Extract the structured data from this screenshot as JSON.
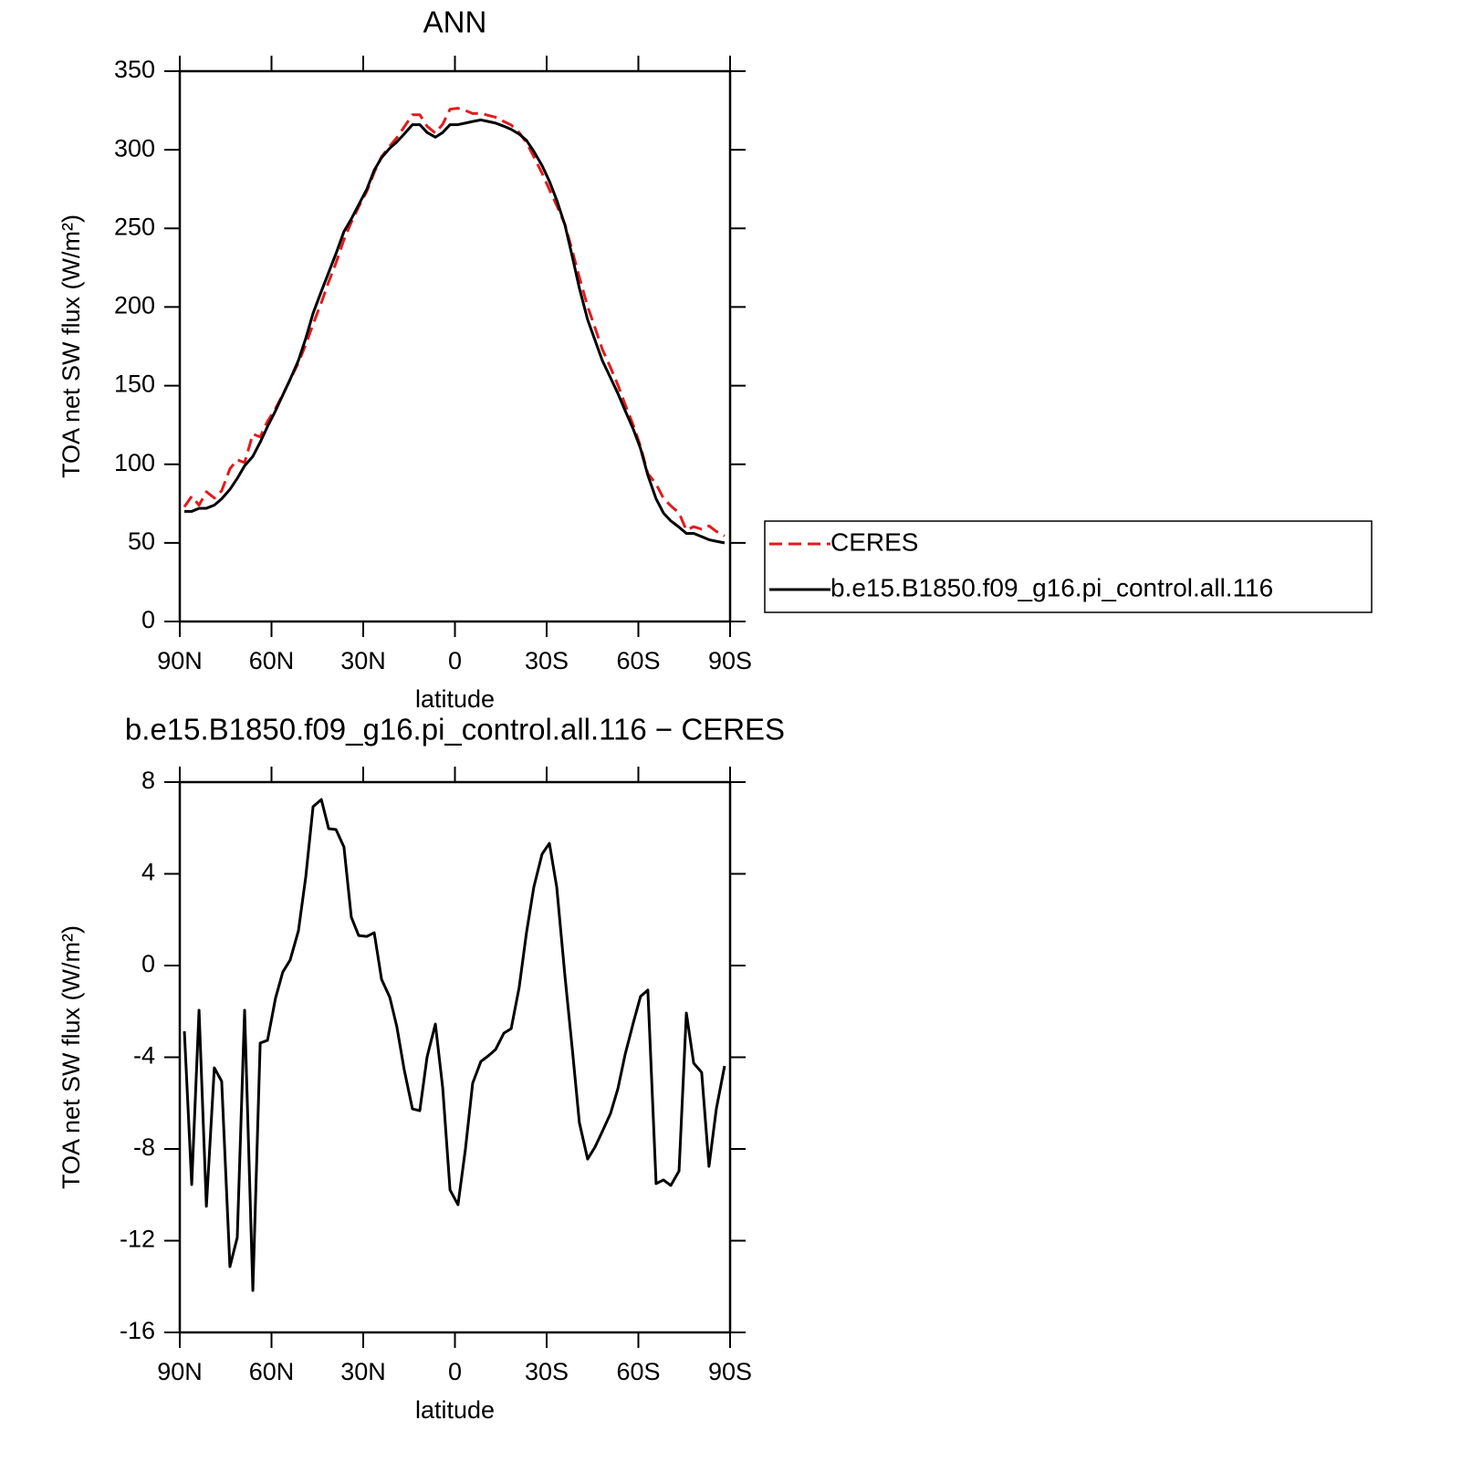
{
  "chart_data": [
    {
      "type": "line",
      "title": "ANN",
      "x_label": "latitude",
      "y_label": "TOA net SW flux (W/m²)",
      "x": [
        88.5,
        86.1,
        83.7,
        81.3,
        78.7,
        76.3,
        73.6,
        71.2,
        68.8,
        66.1,
        63.7,
        61.3,
        58.7,
        56.3,
        53.9,
        51.2,
        48.8,
        46.4,
        43.7,
        41.3,
        38.9,
        36.3,
        33.9,
        31.5,
        28.8,
        26.4,
        24.0,
        21.3,
        19.0,
        16.6,
        13.9,
        11.5,
        9.1,
        6.4,
        4.0,
        1.6,
        -1.0,
        -3.4,
        -5.8,
        -8.5,
        -10.9,
        -13.3,
        -16.0,
        -18.4,
        -21.0,
        -23.4,
        -25.8,
        -28.5,
        -30.9,
        -33.3,
        -36.0,
        -38.4,
        -40.7,
        -43.4,
        -45.8,
        -48.2,
        -50.9,
        -53.3,
        -55.7,
        -58.4,
        -60.7,
        -63.1,
        -65.8,
        -68.2,
        -70.6,
        -73.3,
        -75.7,
        -78.1,
        -80.7,
        -83.1,
        -85.5,
        -88.2
      ],
      "series": [
        {
          "name": "CERES",
          "color": "#e41a1c",
          "line_style": "dashed",
          "values": [
            72.9,
            79.6,
            74.0,
            82.5,
            78.5,
            83.1,
            97.1,
            102.9,
            101.0,
            119.2,
            117.4,
            127.3,
            135.4,
            144.3,
            153.8,
            164.5,
            176.1,
            189.1,
            202.8,
            216.0,
            228.1,
            242.8,
            253.9,
            263.7,
            273.7,
            285.6,
            295.6,
            302.4,
            307.7,
            314.5,
            322.3,
            322.3,
            315.0,
            310.6,
            316.3,
            325.8,
            326.4,
            325.0,
            323.1,
            323.2,
            321.9,
            320.7,
            318.0,
            315.8,
            311.0,
            304.6,
            295.6,
            285.1,
            274.7,
            264.6,
            252.5,
            235.7,
            218.9,
            200.4,
            186.9,
            173.2,
            161.5,
            150.4,
            137.9,
            124.5,
            111.4,
            94.1,
            87.5,
            78.4,
            73.6,
            69.0,
            58.1,
            60.3,
            58.7,
            60.8,
            57.3,
            54.4
          ]
        },
        {
          "name": "b.e15.B1850.f09_g16.pi_control.all.116",
          "color": "#000000",
          "line_style": "solid",
          "values": [
            70,
            70,
            72,
            72,
            74,
            78,
            84,
            91,
            99,
            105,
            114,
            124,
            134,
            144,
            154,
            166,
            180,
            196,
            210,
            222,
            234,
            248,
            256,
            265,
            275,
            287,
            295,
            301,
            305,
            310,
            316,
            316,
            311,
            308,
            311,
            316,
            316,
            317,
            318,
            319,
            318,
            317,
            315,
            313,
            310,
            306,
            299,
            290,
            280,
            268,
            252,
            232,
            212,
            192,
            179,
            166,
            155,
            145,
            134,
            122,
            110,
            93,
            78,
            69,
            64,
            60,
            56,
            56,
            54,
            52,
            51,
            50
          ]
        }
      ],
      "xlim": [
        90,
        -90
      ],
      "xticks": [
        {
          "value": 90,
          "label": "90N"
        },
        {
          "value": 60,
          "label": "60N"
        },
        {
          "value": 30,
          "label": "30N"
        },
        0,
        {
          "value": -30,
          "label": "30S"
        },
        {
          "value": -60,
          "label": "60S"
        },
        {
          "value": -90,
          "label": "90S"
        }
      ],
      "ylim": [
        0,
        350
      ],
      "yticks": [
        0,
        50,
        100,
        150,
        200,
        250,
        300,
        350
      ],
      "legend": "right"
    },
    {
      "type": "line",
      "title": "b.e15.B1850.f09_g16.pi_control.all.116 − CERES",
      "x_label": "latitude",
      "y_label": "TOA net SW flux (W/m²)",
      "x": [
        88.5,
        86.1,
        83.7,
        81.3,
        78.7,
        76.3,
        73.6,
        71.2,
        68.8,
        66.1,
        63.7,
        61.3,
        58.7,
        56.3,
        53.9,
        51.2,
        48.8,
        46.4,
        43.7,
        41.3,
        38.9,
        36.3,
        33.9,
        31.5,
        28.8,
        26.4,
        24.0,
        21.3,
        19.0,
        16.6,
        13.9,
        11.5,
        9.1,
        6.4,
        4.0,
        1.6,
        -1.0,
        -3.4,
        -5.8,
        -8.5,
        -10.9,
        -13.3,
        -16.0,
        -18.4,
        -21.0,
        -23.4,
        -25.8,
        -28.5,
        -30.9,
        -33.3,
        -36.0,
        -38.4,
        -40.7,
        -43.4,
        -45.8,
        -48.2,
        -50.9,
        -53.3,
        -55.7,
        -58.4,
        -60.7,
        -63.1,
        -65.8,
        -68.2,
        -70.6,
        -73.3,
        -75.7,
        -78.1,
        -80.7,
        -83.1,
        -85.5,
        -88.2
      ],
      "color": "#000000",
      "values": [
        -2.87,
        -9.55,
        -1.95,
        -10.5,
        -4.46,
        -5.05,
        -13.13,
        -11.86,
        -1.95,
        -14.17,
        -3.38,
        -3.26,
        -1.43,
        -0.28,
        0.24,
        1.51,
        3.86,
        6.93,
        7.24,
        5.97,
        5.93,
        5.17,
        2.11,
        1.31,
        1.27,
        1.43,
        -0.6,
        -1.39,
        -2.67,
        -4.54,
        -6.25,
        -6.33,
        -3.98,
        -2.55,
        -5.33,
        -9.79,
        -10.43,
        -8.04,
        -5.13,
        -4.18,
        -3.94,
        -3.66,
        -2.95,
        -2.75,
        -0.96,
        1.43,
        3.42,
        4.86,
        5.33,
        3.42,
        -0.48,
        -3.66,
        -6.85,
        -8.44,
        -7.92,
        -7.24,
        -6.45,
        -5.37,
        -3.86,
        -2.47,
        -1.35,
        -1.07,
        -9.51,
        -9.35,
        -9.59,
        -8.96,
        -2.07,
        -4.26,
        -4.66,
        -8.76,
        -6.25,
        -4.38
      ],
      "xlim": [
        90,
        -90
      ],
      "xticks": [
        {
          "value": 90,
          "label": "90N"
        },
        {
          "value": 60,
          "label": "60N"
        },
        {
          "value": 30,
          "label": "30N"
        },
        0,
        {
          "value": -30,
          "label": "30S"
        },
        {
          "value": -60,
          "label": "60S"
        },
        {
          "value": -90,
          "label": "90S"
        }
      ],
      "ylim": [
        -16,
        8
      ],
      "yticks": [
        -16,
        -12,
        -8,
        -4,
        0,
        4,
        8
      ]
    }
  ]
}
